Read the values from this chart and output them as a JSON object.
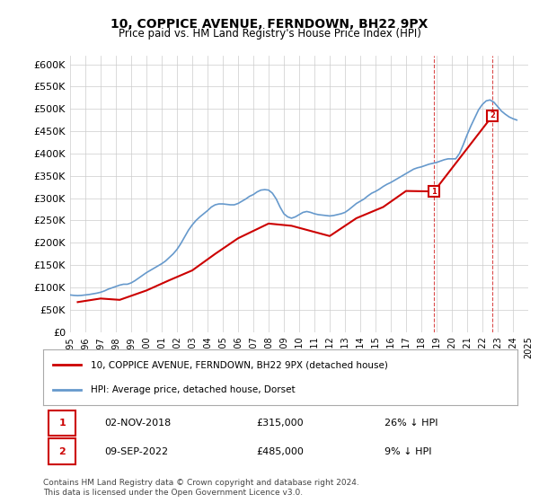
{
  "title": "10, COPPICE AVENUE, FERNDOWN, BH22 9PX",
  "subtitle": "Price paid vs. HM Land Registry's House Price Index (HPI)",
  "ylabel_ticks": [
    "£0",
    "£50K",
    "£100K",
    "£150K",
    "£200K",
    "£250K",
    "£300K",
    "£350K",
    "£400K",
    "£450K",
    "£500K",
    "£550K",
    "£600K"
  ],
  "ylim": [
    0,
    620000
  ],
  "yticks": [
    0,
    50000,
    100000,
    150000,
    200000,
    250000,
    300000,
    350000,
    400000,
    450000,
    500000,
    550000,
    600000
  ],
  "legend_house": "10, COPPICE AVENUE, FERNDOWN, BH22 9PX (detached house)",
  "legend_hpi": "HPI: Average price, detached house, Dorset",
  "marker1_label": "1",
  "marker2_label": "2",
  "annotation1": [
    "02-NOV-2018",
    "£315,000",
    "26% ↓ HPI"
  ],
  "annotation2": [
    "09-SEP-2022",
    "£485,000",
    "9% ↓ HPI"
  ],
  "footer": "Contains HM Land Registry data © Crown copyright and database right 2024.\nThis data is licensed under the Open Government Licence v3.0.",
  "house_color": "#cc0000",
  "hpi_color": "#6699cc",
  "grid_color": "#cccccc",
  "bg_color": "#ffffff",
  "hpi_data": {
    "years": [
      1995.0,
      1995.25,
      1995.5,
      1995.75,
      1996.0,
      1996.25,
      1996.5,
      1996.75,
      1997.0,
      1997.25,
      1997.5,
      1997.75,
      1998.0,
      1998.25,
      1998.5,
      1998.75,
      1999.0,
      1999.25,
      1999.5,
      1999.75,
      2000.0,
      2000.25,
      2000.5,
      2000.75,
      2001.0,
      2001.25,
      2001.5,
      2001.75,
      2002.0,
      2002.25,
      2002.5,
      2002.75,
      2003.0,
      2003.25,
      2003.5,
      2003.75,
      2004.0,
      2004.25,
      2004.5,
      2004.75,
      2005.0,
      2005.25,
      2005.5,
      2005.75,
      2006.0,
      2006.25,
      2006.5,
      2006.75,
      2007.0,
      2007.25,
      2007.5,
      2007.75,
      2008.0,
      2008.25,
      2008.5,
      2008.75,
      2009.0,
      2009.25,
      2009.5,
      2009.75,
      2010.0,
      2010.25,
      2010.5,
      2010.75,
      2011.0,
      2011.25,
      2011.5,
      2011.75,
      2012.0,
      2012.25,
      2012.5,
      2012.75,
      2013.0,
      2013.25,
      2013.5,
      2013.75,
      2014.0,
      2014.25,
      2014.5,
      2014.75,
      2015.0,
      2015.25,
      2015.5,
      2015.75,
      2016.0,
      2016.25,
      2016.5,
      2016.75,
      2017.0,
      2017.25,
      2017.5,
      2017.75,
      2018.0,
      2018.25,
      2018.5,
      2018.75,
      2019.0,
      2019.25,
      2019.5,
      2019.75,
      2020.0,
      2020.25,
      2020.5,
      2020.75,
      2021.0,
      2021.25,
      2021.5,
      2021.75,
      2022.0,
      2022.25,
      2022.5,
      2022.75,
      2023.0,
      2023.25,
      2023.5,
      2023.75,
      2024.0,
      2024.25
    ],
    "values": [
      83000,
      82000,
      81500,
      82000,
      83000,
      84000,
      85500,
      87000,
      89000,
      92000,
      96000,
      99000,
      102000,
      105000,
      107000,
      107000,
      110000,
      115000,
      121000,
      127000,
      133000,
      138000,
      143000,
      148000,
      153000,
      159000,
      167000,
      175000,
      185000,
      198000,
      213000,
      228000,
      240000,
      250000,
      258000,
      265000,
      272000,
      280000,
      285000,
      287000,
      287000,
      286000,
      285000,
      285000,
      288000,
      293000,
      298000,
      304000,
      308000,
      314000,
      318000,
      319000,
      318000,
      311000,
      298000,
      280000,
      265000,
      258000,
      255000,
      258000,
      263000,
      268000,
      270000,
      268000,
      265000,
      263000,
      262000,
      261000,
      260000,
      261000,
      263000,
      265000,
      268000,
      274000,
      281000,
      288000,
      293000,
      298000,
      305000,
      311000,
      315000,
      320000,
      326000,
      331000,
      335000,
      340000,
      345000,
      350000,
      355000,
      360000,
      365000,
      368000,
      370000,
      373000,
      376000,
      378000,
      380000,
      383000,
      386000,
      388000,
      388000,
      388000,
      400000,
      420000,
      442000,
      462000,
      480000,
      498000,
      510000,
      518000,
      520000,
      515000,
      505000,
      495000,
      488000,
      482000,
      478000,
      475000
    ]
  },
  "house_data": {
    "years": [
      1995.5,
      1997.0,
      1998.25,
      2000.0,
      2001.5,
      2003.0,
      2004.5,
      2006.0,
      2008.0,
      2009.5,
      2012.0,
      2013.75,
      2015.5,
      2017.0,
      2018.83,
      2022.67
    ],
    "values": [
      67000,
      75000,
      72000,
      93000,
      116000,
      138000,
      175000,
      210000,
      243000,
      238000,
      215000,
      255000,
      280000,
      316000,
      315000,
      485000
    ]
  },
  "marker1_x": 2018.83,
  "marker1_y": 315000,
  "marker2_x": 2022.67,
  "marker2_y": 485000,
  "xmin": 1995,
  "xmax": 2025
}
